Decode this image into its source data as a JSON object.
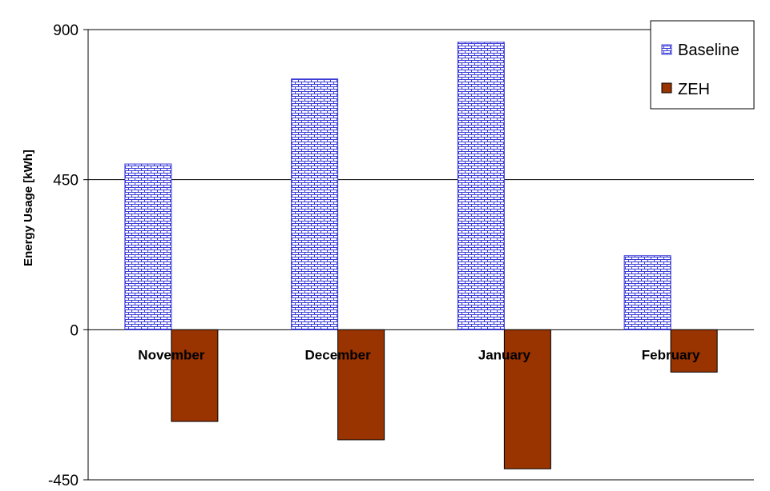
{
  "chart_data": {
    "type": "bar",
    "title": "",
    "xlabel": "",
    "ylabel": "Energy Usage [kWh]",
    "categories": [
      "November",
      "December",
      "January",
      "February"
    ],
    "series": [
      {
        "name": "Baseline",
        "values": [
          497,
          752,
          862,
          222
        ],
        "color": "#3a3ad6",
        "pattern": "brick"
      },
      {
        "name": "ZEH",
        "values": [
          -275,
          -330,
          -417,
          -127
        ],
        "color": "#993300",
        "pattern": "solid"
      }
    ],
    "ylim": [
      -450,
      900
    ],
    "yticks": [
      -450,
      0,
      450,
      900
    ],
    "grid": true,
    "legend": "top-right"
  }
}
